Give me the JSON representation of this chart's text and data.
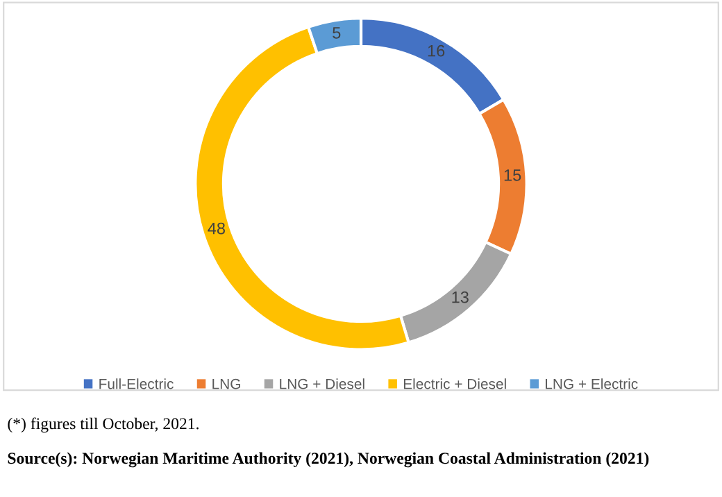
{
  "chart_data": {
    "type": "donut",
    "categories": [
      "Full-Electric",
      "LNG",
      "LNG + Diesel",
      "Electric + Diesel",
      "LNG + Electric"
    ],
    "values": [
      16,
      15,
      13,
      48,
      5
    ],
    "colors": [
      "#4472c4",
      "#ed7d31",
      "#a5a5a5",
      "#ffc000",
      "#5b9bd5"
    ],
    "data_labels": true,
    "legend": "bottom",
    "annotations": [
      "(*) figures till October, 2021.",
      "Source(s): Norwegian Maritime Authority (2021), Norwegian Coastal Administration (2021)"
    ]
  }
}
